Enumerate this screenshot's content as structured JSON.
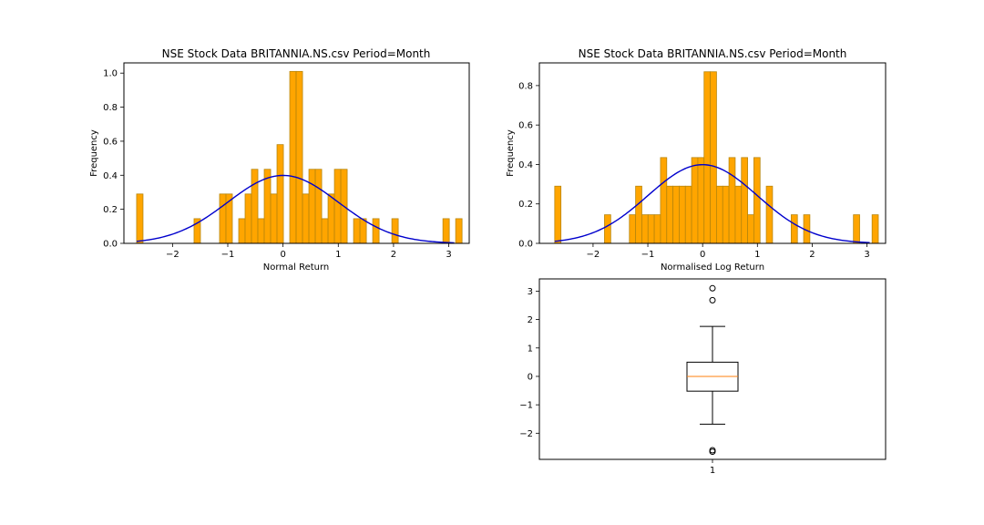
{
  "chart_data": [
    {
      "type": "bar",
      "title": "NSE Stock Data BRITANNIA.NS.csv Period=Month",
      "xlabel": "Normal Return",
      "ylabel": "Frequency",
      "xlim": [
        -2.88,
        3.37
      ],
      "ylim": [
        0,
        1.06
      ],
      "xticks": [
        -2,
        -1,
        0,
        1,
        2,
        3
      ],
      "xtick_labels": [
        "−2",
        "−1",
        "0",
        "1",
        "2",
        "3"
      ],
      "yticks": [
        0.0,
        0.2,
        0.4,
        0.6,
        0.8,
        1.0
      ],
      "ytick_labels": [
        "0.0",
        "0.2",
        "0.4",
        "0.6",
        "0.8",
        "1.0"
      ],
      "grid": false,
      "bar_color": "#FFA500",
      "bar_edge_color": "#B8860B",
      "curve_color": "#0000CD",
      "bin_start": -2.65,
      "bin_width": 0.1155,
      "values": [
        0.29,
        0,
        0,
        0,
        0,
        0,
        0,
        0,
        0,
        0.145,
        0,
        0,
        0,
        0.29,
        0.29,
        0,
        0.145,
        0.29,
        0.435,
        0.145,
        0.435,
        0.29,
        0.58,
        0,
        1.01,
        1.01,
        0.29,
        0.435,
        0.435,
        0.145,
        0.29,
        0.435,
        0.435,
        0,
        0.145,
        0.145,
        0,
        0.145,
        0,
        0,
        0.145,
        0,
        0,
        0,
        0,
        0,
        0,
        0,
        0.145,
        0,
        0.145
      ],
      "curve": {
        "type": "normal_pdf",
        "mean": 0,
        "std": 1,
        "x_range": [
          -2.65,
          3.1
        ]
      }
    },
    {
      "type": "bar",
      "title": "NSE Stock Data BRITANNIA.NS.csv Period=Month",
      "xlabel": "Normalised Log Return",
      "ylabel": "Frequency",
      "xlim": [
        -2.98,
        3.34
      ],
      "ylim": [
        0,
        0.915
      ],
      "xticks": [
        -2,
        -1,
        0,
        1,
        2,
        3
      ],
      "xtick_labels": [
        "−2",
        "−1",
        "0",
        "1",
        "2",
        "3"
      ],
      "yticks": [
        0.0,
        0.2,
        0.4,
        0.6,
        0.8
      ],
      "ytick_labels": [
        "0.0",
        "0.2",
        "0.4",
        "0.6",
        "0.8"
      ],
      "grid": false,
      "bar_color": "#FFA500",
      "bar_edge_color": "#B8860B",
      "curve_color": "#0000CD",
      "bin_start": -2.7,
      "bin_width": 0.1136,
      "values": [
        0.29,
        0,
        0,
        0,
        0,
        0,
        0,
        0,
        0.145,
        0,
        0,
        0,
        0.145,
        0.29,
        0.145,
        0.145,
        0.145,
        0.435,
        0.29,
        0.29,
        0.29,
        0.29,
        0.435,
        0.435,
        0.87,
        0.87,
        0.29,
        0.29,
        0.435,
        0.29,
        0.435,
        0.145,
        0.435,
        0,
        0.29,
        0,
        0,
        0,
        0.145,
        0,
        0.145,
        0,
        0,
        0,
        0,
        0,
        0,
        0,
        0.145,
        0,
        0,
        0.145
      ],
      "curve": {
        "type": "normal_pdf",
        "mean": 0,
        "std": 1,
        "x_range": [
          -2.7,
          3.05
        ]
      }
    },
    {
      "type": "box",
      "xtick_labels": [
        "1"
      ],
      "ylim": [
        -2.92,
        3.43
      ],
      "yticks": [
        -2,
        -1,
        0,
        1,
        2,
        3
      ],
      "ytick_labels": [
        "−2",
        "−1",
        "0",
        "1",
        "2",
        "3"
      ],
      "median": 0.0,
      "q1": -0.52,
      "q3": 0.5,
      "whisker_low": -1.68,
      "whisker_high": 1.76,
      "outliers": [
        3.1,
        2.68,
        -2.6,
        -2.65
      ],
      "median_color": "#FF7F0E",
      "box_color": "#000000"
    }
  ]
}
